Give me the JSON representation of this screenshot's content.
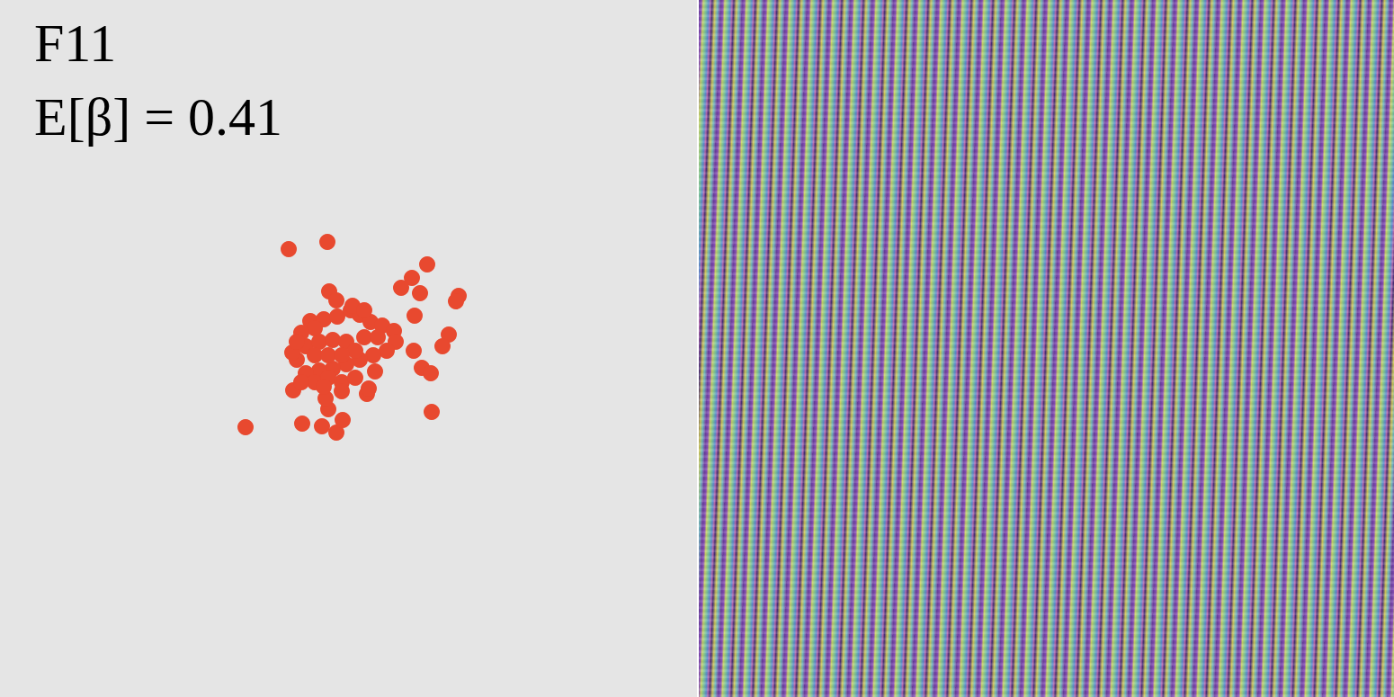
{
  "chart_data": {
    "type": "scatter",
    "annotations": [
      "F11",
      "E[β] = 0.41"
    ],
    "color": "#e8492f",
    "tick_labels": false,
    "grid": false,
    "xlim": [
      0,
      775
    ],
    "ylim": [
      0,
      775
    ],
    "x": [
      321,
      364,
      475,
      458,
      446,
      467,
      510,
      507,
      461,
      499,
      492,
      460,
      469,
      479,
      417,
      480,
      273,
      336,
      358,
      374,
      381,
      365,
      362,
      326,
      408,
      410,
      366,
      374,
      345,
      360,
      375,
      390,
      400,
      412,
      425,
      438,
      440,
      430,
      415,
      400,
      385,
      370,
      355,
      340,
      330,
      325,
      340,
      355,
      370,
      385,
      395,
      405,
      420,
      350,
      365,
      380,
      350,
      365,
      380,
      395,
      335,
      392,
      405,
      350,
      335,
      360,
      380,
      330
    ],
    "values": [
      498,
      506,
      481,
      466,
      455,
      449,
      446,
      440,
      424,
      403,
      390,
      385,
      366,
      360,
      362,
      317,
      300,
      304,
      301,
      294,
      308,
      320,
      332,
      341,
      337,
      343,
      451,
      441,
      418,
      420,
      423,
      430,
      425,
      417,
      413,
      407,
      395,
      385,
      380,
      375,
      370,
      365,
      363,
      360,
      375,
      383,
      390,
      395,
      397,
      395,
      385,
      400,
      400,
      380,
      380,
      380,
      350,
      355,
      350,
      355,
      350,
      435,
      430,
      410,
      405,
      345,
      340,
      395
    ]
  }
}
